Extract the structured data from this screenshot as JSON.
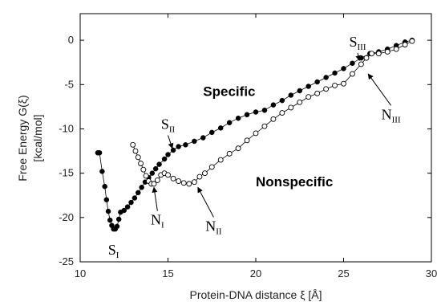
{
  "chart_data": {
    "type": "scatter",
    "xlabel": "Protein-DNA distance ξ [Å]",
    "ylabel_line1": "Free Energy G(ξ)",
    "ylabel_line2": "[kcal/mol]",
    "xlim": [
      10,
      30
    ],
    "ylim": [
      -25,
      3
    ],
    "xticks": [
      10,
      15,
      20,
      25,
      30
    ],
    "yticks": [
      0,
      -5,
      -10,
      -15,
      -20,
      -25
    ],
    "grid": false,
    "legend": "none",
    "series": [
      {
        "name": "Specific",
        "marker": "filled-circle",
        "color": "#000000",
        "x": [
          11.0,
          11.1,
          11.25,
          11.4,
          11.5,
          11.6,
          11.7,
          11.8,
          11.9,
          12.0,
          12.1,
          12.2,
          12.3,
          12.5,
          12.7,
          12.9,
          13.1,
          13.3,
          13.5,
          13.7,
          13.9,
          14.1,
          14.3,
          14.5,
          14.8,
          15.0,
          15.3,
          15.6,
          16.0,
          16.5,
          17.0,
          17.5,
          18.0,
          18.5,
          19.0,
          19.5,
          20.0,
          20.5,
          21.0,
          21.5,
          22.0,
          22.5,
          23.0,
          23.5,
          24.0,
          24.5,
          25.0,
          25.5,
          26.0,
          26.5,
          27.0,
          27.5,
          28.0,
          28.5,
          28.9
        ],
        "y": [
          -12.7,
          -12.7,
          -14.8,
          -16.5,
          -18.0,
          -19.3,
          -20.3,
          -20.9,
          -21.3,
          -21.3,
          -21.0,
          -20.2,
          -19.4,
          -19.2,
          -18.8,
          -18.3,
          -17.8,
          -17.2,
          -16.6,
          -16.0,
          -15.5,
          -15.0,
          -14.5,
          -14.0,
          -13.4,
          -12.9,
          -12.4,
          -12.0,
          -11.8,
          -11.4,
          -11.0,
          -10.4,
          -9.9,
          -9.3,
          -8.8,
          -8.4,
          -8.1,
          -7.9,
          -7.3,
          -6.8,
          -6.2,
          -5.7,
          -5.2,
          -4.7,
          -4.2,
          -3.7,
          -3.2,
          -2.6,
          -2.0,
          -1.5,
          -1.3,
          -1.0,
          -0.6,
          -0.2,
          0.0
        ]
      },
      {
        "name": "Nonspecific",
        "marker": "open-circle",
        "color": "#000000",
        "x": [
          13.0,
          13.15,
          13.3,
          13.45,
          13.6,
          13.75,
          13.9,
          14.05,
          14.2,
          14.4,
          14.6,
          14.8,
          15.0,
          15.3,
          15.6,
          15.9,
          16.2,
          16.5,
          16.8,
          17.1,
          17.5,
          18.0,
          18.5,
          19.0,
          19.5,
          20.0,
          20.5,
          21.0,
          21.5,
          22.0,
          22.5,
          23.0,
          23.5,
          24.0,
          24.5,
          25.0,
          25.5,
          26.0,
          26.3,
          26.6,
          27.0,
          27.5,
          28.0,
          28.5,
          28.9
        ],
        "y": [
          -11.8,
          -12.5,
          -13.2,
          -13.9,
          -14.6,
          -15.3,
          -15.9,
          -16.2,
          -16.2,
          -15.8,
          -15.2,
          -15.0,
          -15.2,
          -15.6,
          -15.9,
          -16.1,
          -16.2,
          -16.0,
          -15.4,
          -15.0,
          -14.3,
          -13.5,
          -12.8,
          -12.2,
          -11.3,
          -10.5,
          -9.7,
          -8.9,
          -8.2,
          -7.6,
          -7.0,
          -6.4,
          -6.0,
          -5.5,
          -5.1,
          -4.9,
          -3.8,
          -2.7,
          -2.0,
          -1.5,
          -1.5,
          -1.3,
          -1.0,
          -0.5,
          -0.1
        ]
      }
    ],
    "series_labels": [
      {
        "text": "Specific",
        "x": 17.0,
        "y": -6.3
      },
      {
        "text": "Nonspecific",
        "x": 20.0,
        "y": -16.5
      }
    ],
    "annotations": [
      {
        "main": "S",
        "sub": "I",
        "x": 11.9,
        "y": -24.2,
        "arrow": false
      },
      {
        "main": "S",
        "sub": "II",
        "x": 15.0,
        "y": -10.0,
        "arrow": true,
        "arrow_to_x": 15.25,
        "arrow_to_y": -12.2
      },
      {
        "main": "S",
        "sub": "III",
        "x": 25.8,
        "y": -0.7,
        "arrow": true,
        "arrow_to_x": 25.9,
        "arrow_to_y": -2.3
      },
      {
        "main": "N",
        "sub": "I",
        "x": 14.4,
        "y": -20.8,
        "arrow": true,
        "arrow_to_x": 14.2,
        "arrow_to_y": -16.6
      },
      {
        "main": "N",
        "sub": "II",
        "x": 17.6,
        "y": -21.5,
        "arrow": true,
        "arrow_to_x": 16.7,
        "arrow_to_y": -16.6
      },
      {
        "main": "N",
        "sub": "III",
        "x": 27.7,
        "y": -8.9,
        "arrow": true,
        "arrow_to_x": 26.4,
        "arrow_to_y": -3.8
      }
    ]
  }
}
